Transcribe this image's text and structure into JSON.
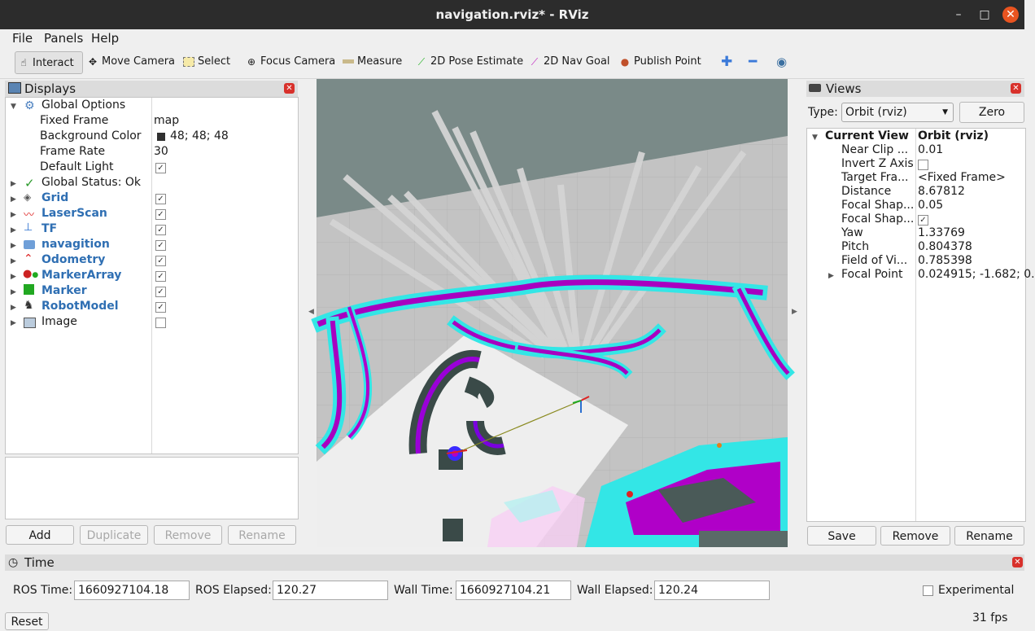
{
  "window": {
    "title": "navigation.rviz* - RViz",
    "min_icon": "–",
    "max_icon": "□",
    "close_icon": "✕"
  },
  "menu": [
    "File",
    "Panels",
    "Help"
  ],
  "toolbar": {
    "interact": "Interact",
    "move_camera": "Move Camera",
    "select": "Select",
    "focus_camera": "Focus Camera",
    "measure": "Measure",
    "pose_estimate": "2D Pose Estimate",
    "nav_goal": "2D Nav Goal",
    "publish_point": "Publish Point"
  },
  "displays": {
    "title": "Displays",
    "global_options": "Global Options",
    "props": [
      {
        "name": "Fixed Frame",
        "value": "map"
      },
      {
        "name": "Background Color",
        "value": "48; 48; 48"
      },
      {
        "name": "Frame Rate",
        "value": "30"
      },
      {
        "name": "Default Light",
        "value": ""
      }
    ],
    "global_status": "Global Status: Ok",
    "items": [
      {
        "label": "Grid",
        "checked": true,
        "blue": true
      },
      {
        "label": "LaserScan",
        "checked": true,
        "blue": true
      },
      {
        "label": "TF",
        "checked": true,
        "blue": true
      },
      {
        "label": "navagition",
        "checked": true,
        "blue": true
      },
      {
        "label": "Odometry",
        "checked": true,
        "blue": true
      },
      {
        "label": "MarkerArray",
        "checked": true,
        "blue": true
      },
      {
        "label": "Marker",
        "checked": true,
        "blue": true
      },
      {
        "label": "RobotModel",
        "checked": true,
        "blue": true
      },
      {
        "label": "Image",
        "checked": false,
        "blue": false
      }
    ],
    "buttons": {
      "add": "Add",
      "duplicate": "Duplicate",
      "remove": "Remove",
      "rename": "Rename"
    }
  },
  "views": {
    "title": "Views",
    "type_label": "Type:",
    "type_value": "Orbit (rviz)",
    "zero": "Zero",
    "current_view": "Current View",
    "current_view_value": "Orbit (rviz)",
    "props": [
      {
        "name": "Near Clip ...",
        "value": "0.01"
      },
      {
        "name": "Invert Z Axis",
        "value": ""
      },
      {
        "name": "Target Fra...",
        "value": "<Fixed Frame>"
      },
      {
        "name": "Distance",
        "value": "8.67812"
      },
      {
        "name": "Focal Shap...",
        "value": "0.05"
      },
      {
        "name": "Focal Shap...",
        "value": ""
      },
      {
        "name": "Yaw",
        "value": "1.33769"
      },
      {
        "name": "Pitch",
        "value": "0.804378"
      },
      {
        "name": "Field of Vi...",
        "value": "0.785398"
      },
      {
        "name": "Focal Point",
        "value": "0.024915; -1.682; 0."
      }
    ],
    "buttons": {
      "save": "Save",
      "remove": "Remove",
      "rename": "Rename"
    }
  },
  "time": {
    "title": "Time",
    "ros_time_label": "ROS Time:",
    "ros_time": "1660927104.18",
    "ros_elapsed_label": "ROS Elapsed:",
    "ros_elapsed": "120.27",
    "wall_time_label": "Wall Time:",
    "wall_time": "1660927104.21",
    "wall_elapsed_label": "Wall Elapsed:",
    "wall_elapsed": "120.24",
    "experimental": "Experimental",
    "reset": "Reset",
    "fps": "31 fps"
  },
  "colors": {
    "cyan": "#33e6e6",
    "magenta": "#b000c8",
    "dark": "#3a4a48",
    "floor": "#c8c8c8",
    "wall": "#778886",
    "close": "#e95420"
  }
}
